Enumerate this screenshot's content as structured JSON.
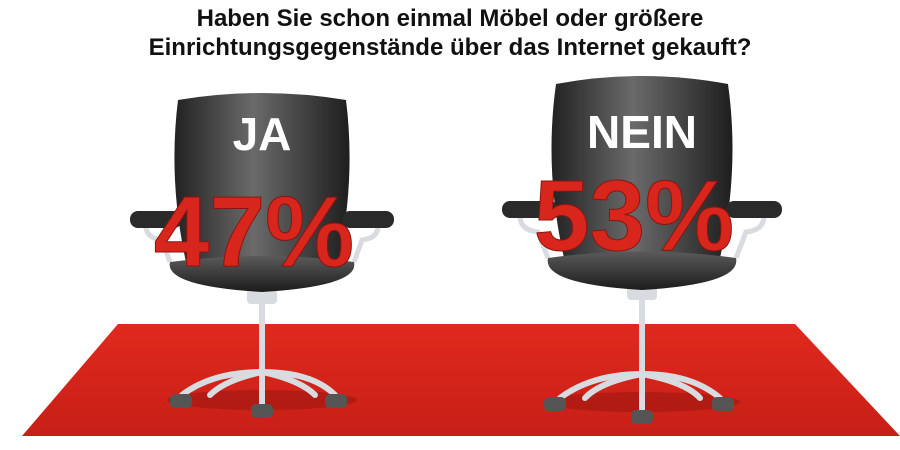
{
  "title_line1": "Haben Sie schon einmal Möbel oder größere",
  "title_line2": "Einrichtungsgegenstände über das Internet gekauft?",
  "colors": {
    "carpet": "#d9261c",
    "value": "#d9261c",
    "chair": "#3a3a3a",
    "label": "#ffffff",
    "base": "#d8dbdf"
  },
  "chart_data": {
    "type": "bar",
    "categories": [
      "JA",
      "NEIN"
    ],
    "values": [
      47,
      53
    ],
    "unit": "%",
    "value_labels": [
      "47%",
      "53%"
    ]
  }
}
